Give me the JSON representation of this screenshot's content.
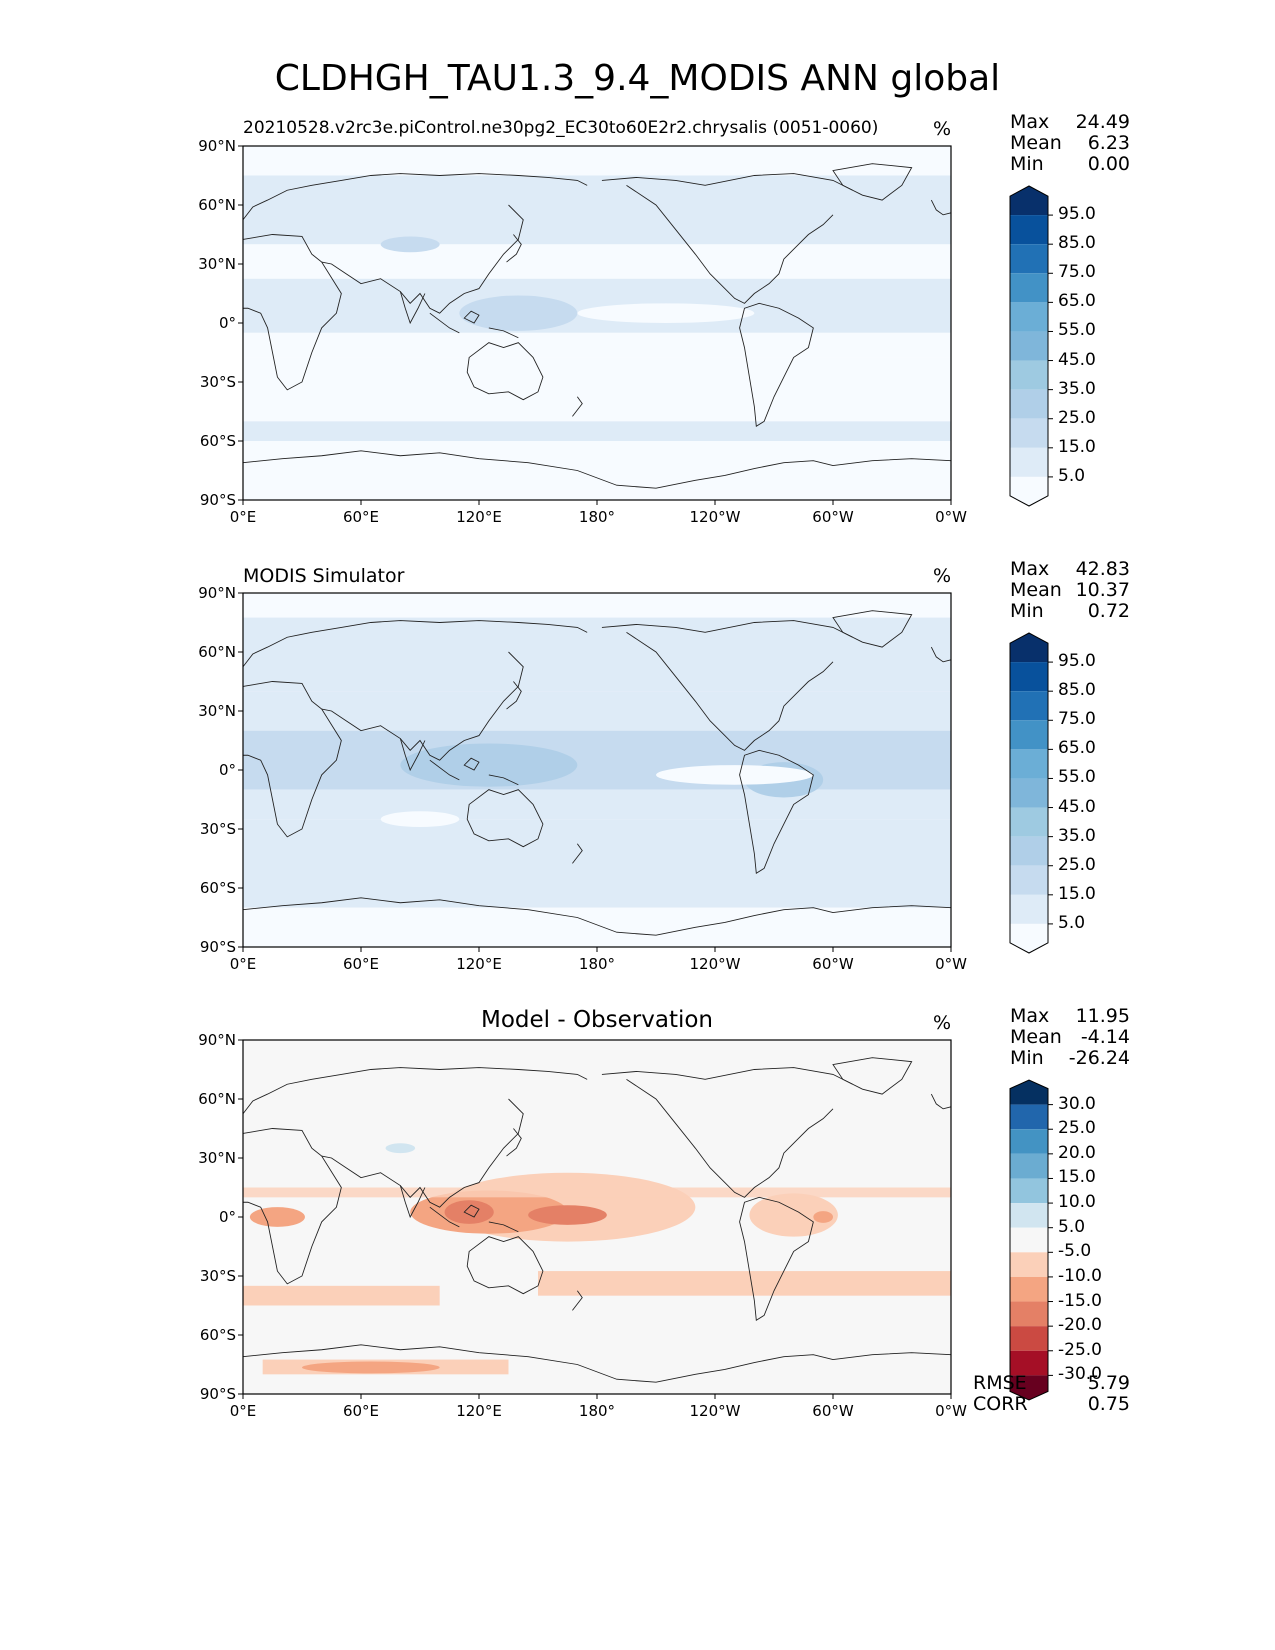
{
  "title": "CLDHGH_TAU1.3_9.4_MODIS ANN global",
  "colors": {
    "cloud_scale": [
      "#f7fbff",
      "#deebf7",
      "#c6dbef",
      "#b0cfe8",
      "#9ecae1",
      "#7fb6da",
      "#6baed6",
      "#4292c6",
      "#2171b5",
      "#08519c",
      "#08306b"
    ],
    "diff_scale": [
      "#67001f",
      "#a50f26",
      "#cb4a42",
      "#e48066",
      "#f4a582",
      "#fbd0b9",
      "#f7f7f7",
      "#d1e5f0",
      "#92c5de",
      "#6bacd1",
      "#4393c3",
      "#2166ac",
      "#053061"
    ]
  },
  "axis": {
    "lat_ticks": [
      "90°N",
      "60°N",
      "30°N",
      "0°",
      "30°S",
      "60°S",
      "90°S"
    ],
    "lon_ticks": [
      "0°E",
      "60°E",
      "120°E",
      "180°",
      "120°W",
      "60°W",
      "0°W"
    ]
  },
  "panels": [
    {
      "subtitle": "20210528.v2rc3e.piControl.ne30pg2_EC30to60E2r2.chrysalis (0051-0060)",
      "units": "%",
      "stats": [
        {
          "label": "Max",
          "value": "24.49"
        },
        {
          "label": "Mean",
          "value": "6.23"
        },
        {
          "label": "Min",
          "value": "0.00"
        }
      ],
      "colorbar_labels": [
        "95.0",
        "85.0",
        "75.0",
        "65.0",
        "55.0",
        "45.0",
        "35.0",
        "25.0",
        "15.0",
        "5.0"
      ]
    },
    {
      "subtitle": "MODIS Simulator",
      "units": "%",
      "stats": [
        {
          "label": "Max",
          "value": "42.83"
        },
        {
          "label": "Mean",
          "value": "10.37"
        },
        {
          "label": "Min",
          "value": "0.72"
        }
      ],
      "colorbar_labels": [
        "95.0",
        "85.0",
        "75.0",
        "65.0",
        "55.0",
        "45.0",
        "35.0",
        "25.0",
        "15.0",
        "5.0"
      ]
    },
    {
      "subtitle": "Model - Observation",
      "units": "%",
      "stats": [
        {
          "label": "Max",
          "value": "11.95"
        },
        {
          "label": "Mean",
          "value": "-4.14"
        },
        {
          "label": "Min",
          "value": "-26.24"
        }
      ],
      "colorbar_labels": [
        "30.0",
        "25.0",
        "20.0",
        "15.0",
        "10.0",
        "5.0",
        "-5.0",
        "-10.0",
        "-15.0",
        "-20.0",
        "-25.0",
        "-30.0"
      ],
      "metrics": [
        {
          "label": "RMSE",
          "value": "5.79"
        },
        {
          "label": "CORR",
          "value": "0.75"
        }
      ]
    }
  ]
}
